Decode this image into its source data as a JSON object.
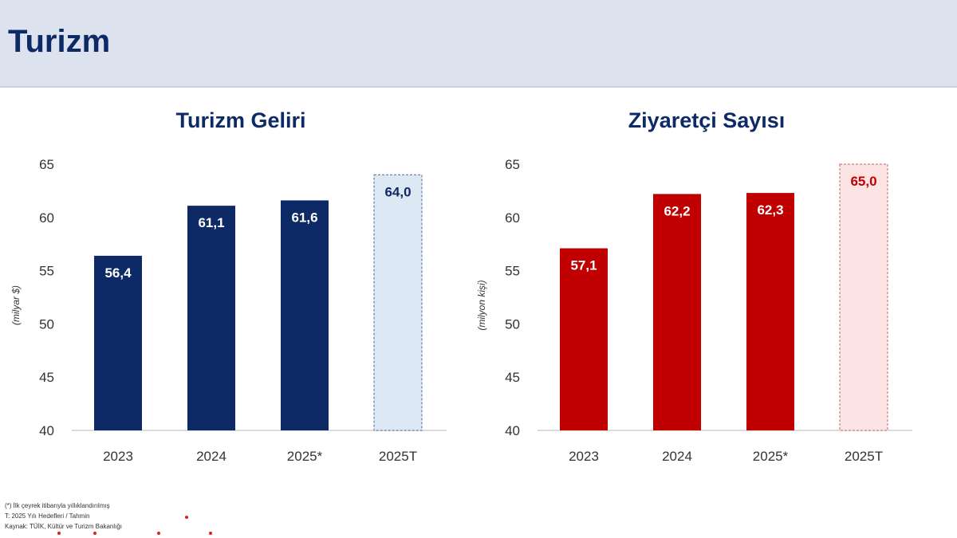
{
  "header": {
    "title": "Turizm"
  },
  "chart_data": [
    {
      "type": "bar",
      "title": "Turizm Geliri",
      "ylabel": "(milyar $)",
      "ylim": [
        40,
        65
      ],
      "yticks": [
        40,
        45,
        50,
        55,
        60,
        65
      ],
      "categories": [
        "2023",
        "2024",
        "2025*",
        "2025T"
      ],
      "values": [
        56.4,
        61.1,
        61.6,
        64.0
      ],
      "value_labels": [
        "56,4",
        "61,1",
        "61,6",
        "64,0"
      ],
      "target_category": "2025T",
      "colors": {
        "bar": "#0d2a66",
        "target_fill": "#dde8f5",
        "target_border": "#6b7fa6",
        "label": "#ffffff",
        "target_label": "#0d2a66"
      }
    },
    {
      "type": "bar",
      "title": "Ziyaretçi Sayısı",
      "ylabel": "(milyon kişi)",
      "ylim": [
        40,
        65
      ],
      "yticks": [
        40,
        45,
        50,
        55,
        60,
        65
      ],
      "categories": [
        "2023",
        "2024",
        "2025*",
        "2025T"
      ],
      "values": [
        57.1,
        62.2,
        62.3,
        65.0
      ],
      "value_labels": [
        "57,1",
        "62,2",
        "62,3",
        "65,0"
      ],
      "target_category": "2025T",
      "colors": {
        "bar": "#c00000",
        "target_fill": "#fde4e4",
        "target_border": "#c88080",
        "label": "#ffffff",
        "target_label": "#c00000"
      }
    }
  ],
  "footnotes": [
    "(*) İlk çeyrek itibarıyla yıllıklandırılmış",
    "T: 2025 Yılı Hedefleri / Tahmin",
    "Kaynak: TÜİK, Kültür ve Turizm Bakanlığı"
  ]
}
